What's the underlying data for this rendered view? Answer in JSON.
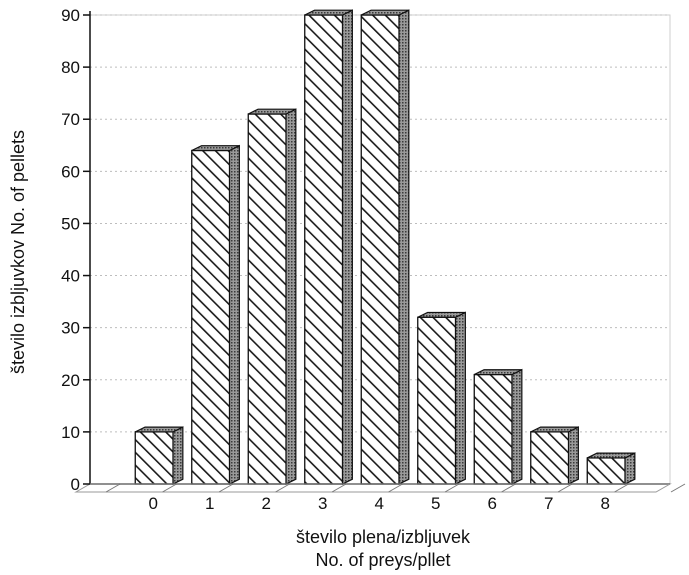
{
  "chart_data": {
    "type": "bar",
    "title": "",
    "xlabel_line1": "število plena/izbljuvek",
    "xlabel_line2": "No. of preys/pllet",
    "ylabel": "število izbljuvkov   No. of pellets",
    "categories": [
      "0",
      "1",
      "2",
      "3",
      "4",
      "5",
      "6",
      "7",
      "8"
    ],
    "values": [
      10,
      64,
      71,
      90,
      90,
      32,
      21,
      10,
      5
    ],
    "ylim": [
      0,
      90
    ],
    "yticks": [
      0,
      10,
      20,
      30,
      40,
      50,
      60,
      70,
      80,
      90
    ],
    "grid": true,
    "style": "3d-hatched"
  },
  "colors": {
    "bar_face": "#ffffff",
    "hatch": "#1a1a1a",
    "bar_side": "#8a8a8a",
    "bar_top": "#b0b0b0",
    "outline": "#111111",
    "grid": "#bdbdbd"
  }
}
